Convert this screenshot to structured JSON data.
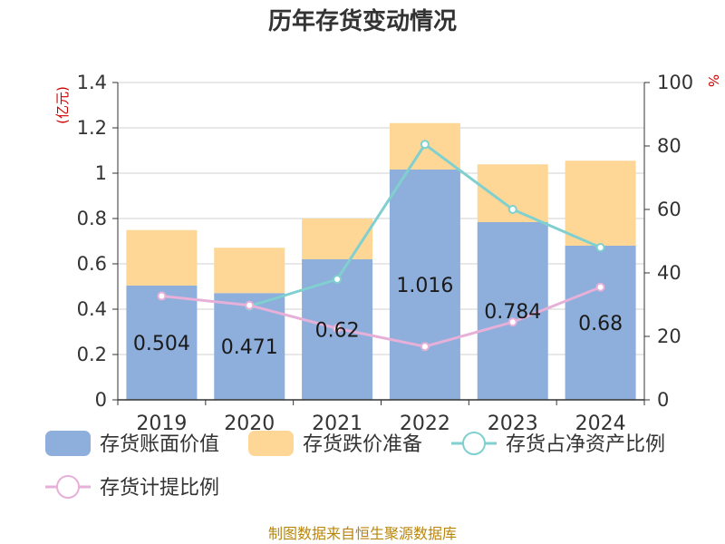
{
  "title": "历年存货变动情况",
  "source": "制图数据来自恒生聚源数据库",
  "left_unit": "(亿元)",
  "right_unit": "%",
  "colors": {
    "book_value": "#8eaedb",
    "impairment": "#fed796",
    "inventory_ratio": "#7fd0cf",
    "provision_ratio": "#e6b0d8"
  },
  "chart_data": {
    "type": "bar",
    "categories": [
      "2019",
      "2020",
      "2021",
      "2022",
      "2023",
      "2024"
    ],
    "series": [
      {
        "name": "存货账面价值",
        "kind": "bar",
        "axis": "left",
        "stack": "inv",
        "values": [
          0.504,
          0.471,
          0.62,
          1.016,
          0.784,
          0.68
        ]
      },
      {
        "name": "存货跌价准备",
        "kind": "bar",
        "axis": "left",
        "stack": "inv",
        "values": [
          0.245,
          0.2,
          0.18,
          0.205,
          0.255,
          0.375
        ]
      },
      {
        "name": "存货占净资产比例",
        "kind": "line",
        "axis": "right",
        "values": [
          null,
          29.5,
          38,
          80.5,
          60,
          48
        ]
      },
      {
        "name": "存货计提比例",
        "kind": "line",
        "axis": "right",
        "values": [
          32.7,
          29.8,
          22.5,
          16.8,
          24.5,
          35.5
        ]
      }
    ],
    "data_labels": [
      "0.504",
      "0.471",
      "0.62",
      "1.016",
      "0.784",
      "0.68"
    ],
    "y_left": {
      "min": 0,
      "max": 1.4,
      "ticks": [
        "0",
        "0.2",
        "0.4",
        "0.6",
        "0.8",
        "1",
        "1.2",
        "1.4"
      ]
    },
    "y_right": {
      "min": 0,
      "max": 100,
      "ticks": [
        "0",
        "20",
        "40",
        "60",
        "80",
        "100"
      ]
    },
    "grid": true,
    "legend_position": "bottom"
  }
}
